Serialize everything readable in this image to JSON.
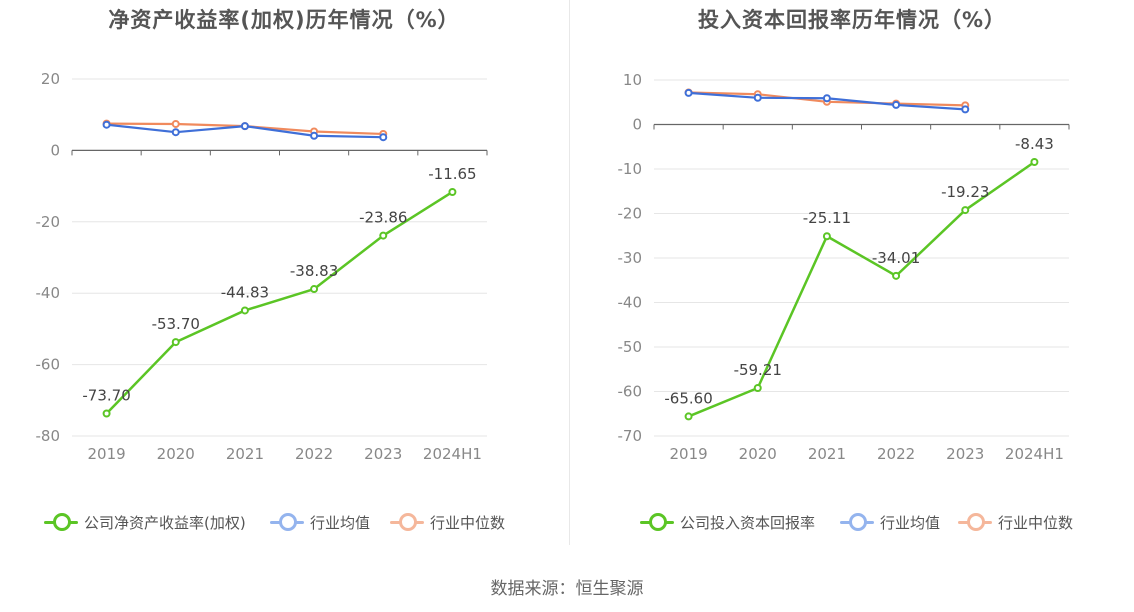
{
  "chart_data": [
    {
      "type": "line",
      "title": "净资产收益率(加权)历年情况（%）",
      "categories": [
        "2019",
        "2020",
        "2021",
        "2022",
        "2023",
        "2024H1"
      ],
      "ylim": [
        -80,
        20
      ],
      "yticks": [
        "20",
        "0",
        "-20",
        "-40",
        "-60",
        "-80"
      ],
      "ytick_values": [
        20,
        0,
        -20,
        -40,
        -60,
        -80
      ],
      "grid": true,
      "legend_position": "bottom",
      "series": [
        {
          "name": "公司净资产收益率(加权)",
          "color": "#5bc525",
          "values": [
            -73.7,
            -53.7,
            -44.83,
            -38.83,
            -23.86,
            -11.65
          ],
          "labels": [
            "-73.70",
            "-53.70",
            "-44.83",
            "-38.83",
            "-23.86",
            "-11.65"
          ]
        },
        {
          "name": "行业均值",
          "color": "#3f6fd8",
          "legend_color": "#94b4ee",
          "values": [
            7.2,
            5.1,
            6.8,
            4.1,
            3.7,
            null
          ]
        },
        {
          "name": "行业中位数",
          "color": "#f08a5d",
          "legend_color": "#f5b79b",
          "values": [
            7.5,
            7.4,
            6.8,
            5.3,
            4.6,
            null
          ]
        }
      ]
    },
    {
      "type": "line",
      "title": "投入资本回报率历年情况（%）",
      "categories": [
        "2019",
        "2020",
        "2021",
        "2022",
        "2023",
        "2024H1"
      ],
      "ylim": [
        -70,
        10
      ],
      "yticks": [
        "10",
        "0",
        "-10",
        "-20",
        "-30",
        "-40",
        "-50",
        "-60",
        "-70"
      ],
      "ytick_values": [
        10,
        0,
        -10,
        -20,
        -30,
        -40,
        -50,
        -60,
        -70
      ],
      "grid": true,
      "legend_position": "bottom",
      "series": [
        {
          "name": "公司投入资本回报率",
          "color": "#5bc525",
          "values": [
            -65.6,
            -59.21,
            -25.11,
            -34.01,
            -19.23,
            -8.43
          ],
          "labels": [
            "-65.60",
            "-59.21",
            "-25.11",
            "-34.01",
            "-19.23",
            "-8.43"
          ]
        },
        {
          "name": "行业均值",
          "color": "#3f6fd8",
          "legend_color": "#94b4ee",
          "values": [
            7.1,
            6.0,
            5.9,
            4.4,
            3.4,
            null
          ]
        },
        {
          "name": "行业中位数",
          "color": "#f08a5d",
          "legend_color": "#f5b79b",
          "values": [
            7.2,
            6.8,
            5.1,
            4.7,
            4.3,
            null
          ]
        }
      ]
    }
  ],
  "source_text": "数据来源：恒生聚源"
}
